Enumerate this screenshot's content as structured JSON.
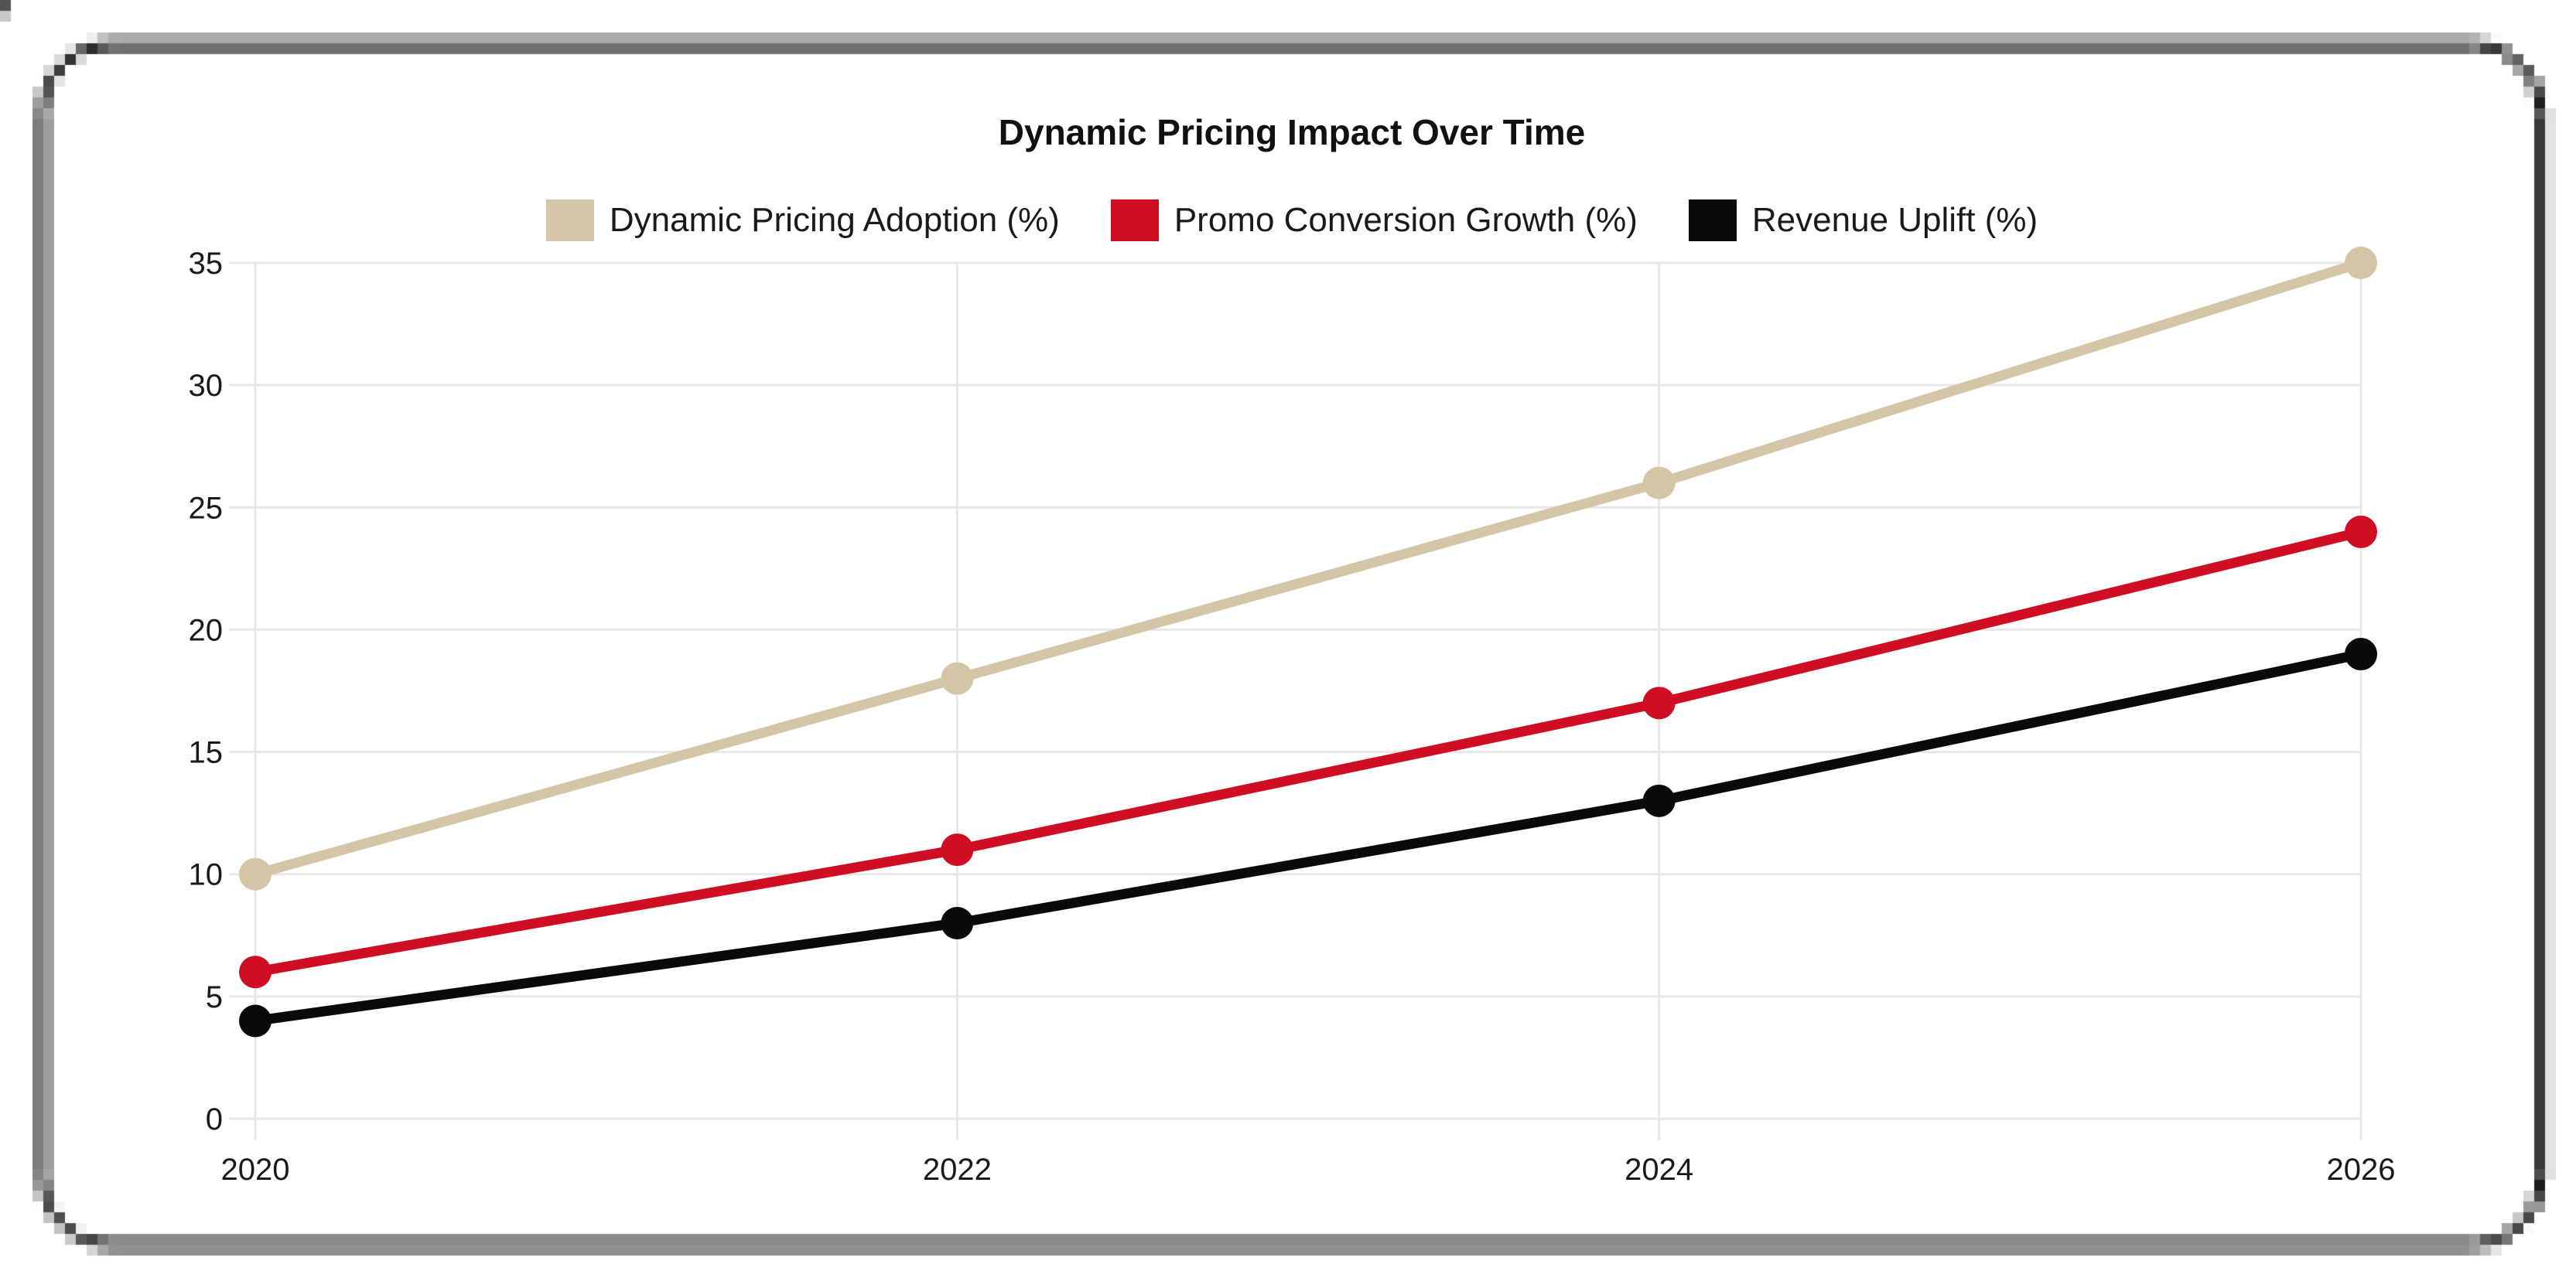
{
  "chart_data": {
    "type": "line",
    "title": "Dynamic Pricing Impact Over Time",
    "categories": [
      "2020",
      "2022",
      "2024",
      "2026"
    ],
    "series": [
      {
        "name": "Dynamic Pricing Adoption (%)",
        "color": "#d4c5a6",
        "values": [
          10,
          18,
          26,
          35
        ]
      },
      {
        "name": "Promo Conversion Growth (%)",
        "color": "#cf0e24",
        "values": [
          6,
          11,
          17,
          24
        ]
      },
      {
        "name": "Revenue Uplift (%)",
        "color": "#0a0a0a",
        "values": [
          4,
          8,
          13,
          19
        ]
      }
    ],
    "xlabel": "",
    "ylabel": "",
    "ylim": [
      0,
      35
    ],
    "y_ticks": [
      0,
      5,
      10,
      15,
      20,
      25,
      30,
      35
    ],
    "grid": true,
    "legend_position": "top",
    "grid_color": "#e7e7e7",
    "tick_color": "#1a1a1a"
  },
  "frame": {
    "color": "#1c1c1c"
  }
}
